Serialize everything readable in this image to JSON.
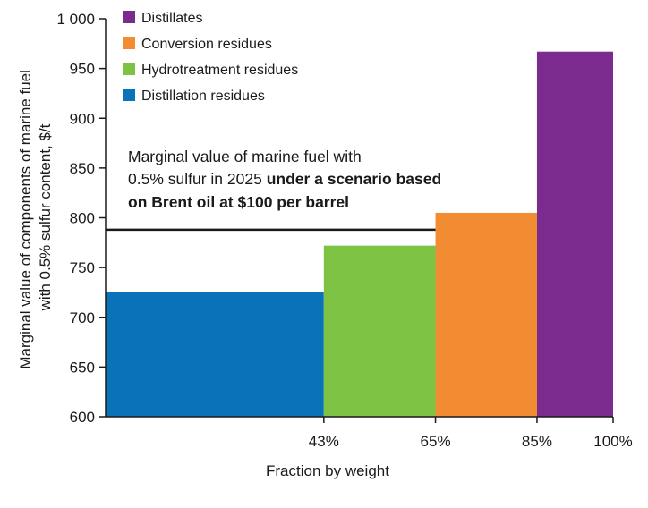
{
  "chart_data": {
    "type": "bar",
    "variant": "variable-width",
    "x_tick_labels": [
      "43%",
      "65%",
      "85%",
      "100%"
    ],
    "x_edges": [
      0,
      43,
      65,
      85,
      100
    ],
    "segments": [
      {
        "name": "Distillation residues",
        "x_start": 0,
        "x_end": 43,
        "value": 725,
        "color": "#0a72b9"
      },
      {
        "name": "Hydrotreatment residues",
        "x_start": 43,
        "x_end": 65,
        "value": 772,
        "color": "#7dc243"
      },
      {
        "name": "Conversion residues",
        "x_start": 65,
        "x_end": 85,
        "value": 805,
        "color": "#f28c33"
      },
      {
        "name": "Distillates",
        "x_start": 85,
        "x_end": 100,
        "value": 967,
        "color": "#7b2a8e"
      }
    ],
    "legend": [
      {
        "label": "Distillates",
        "color": "#7b2a8e"
      },
      {
        "label": "Conversion residues",
        "color": "#f28c33"
      },
      {
        "label": "Hydrotreatment residues",
        "color": "#7dc243"
      },
      {
        "label": "Distillation residues",
        "color": "#0a72b9"
      }
    ],
    "legend_position": "top-left",
    "ylim": [
      600,
      1000
    ],
    "y_ticks": [
      600,
      650,
      700,
      750,
      800,
      850,
      900,
      950,
      1000
    ],
    "y_tick_labels": [
      "600",
      "650",
      "700",
      "750",
      "800",
      "850",
      "900",
      "950",
      "1 000"
    ],
    "xlim": [
      0,
      100
    ],
    "xlabel": "Fraction by weight",
    "ylabel_lines": [
      "Marginal value of components of marine fuel",
      "with 0.5% sulfur content, $/t"
    ],
    "grid": false,
    "reference_line": {
      "value": 788,
      "x_start": 0,
      "x_end": 65
    },
    "annotation": {
      "line1": "Marginal value of marine fuel with",
      "line2_normal": "0.5% sulfur in 2025 ",
      "line2_bold": "under a scenario based",
      "line3_bold": "on Brent oil at $100 per barrel"
    }
  }
}
